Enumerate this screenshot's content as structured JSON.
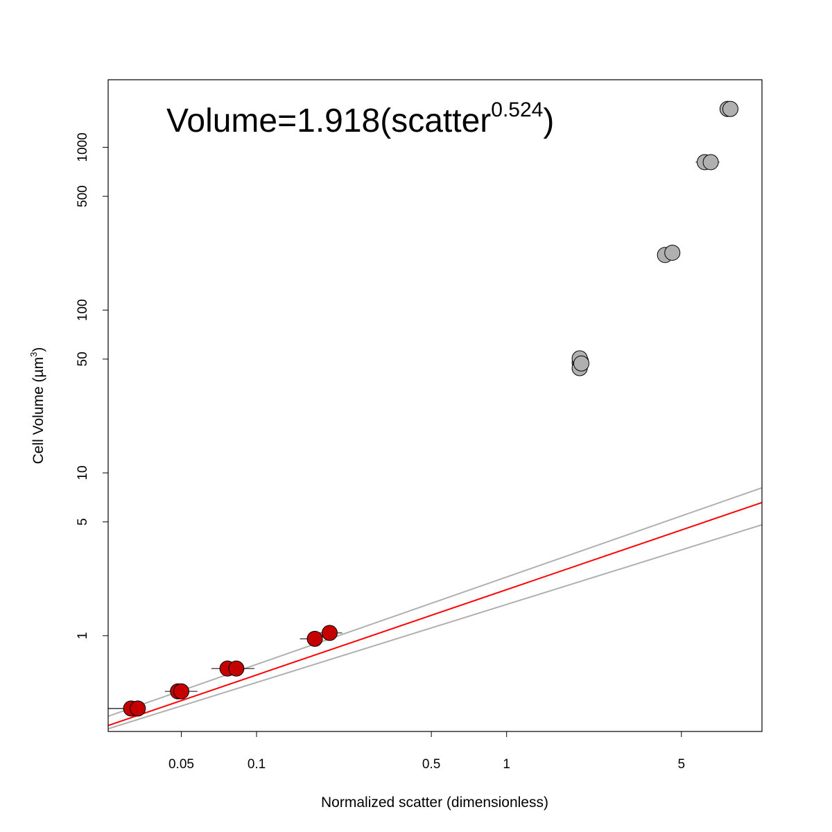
{
  "chart_data": {
    "type": "scatter",
    "x_scale": "log",
    "y_scale": "log",
    "xlabel": "Normalized scatter (dimensionless)",
    "ylabel_main": "Cell Volume (µm",
    "ylabel_sup": "3",
    "ylabel_tail": ")",
    "xlim": [
      0.0255,
      10.5
    ],
    "ylim": [
      0.258,
      2600
    ],
    "x_ticks": [
      0.05,
      0.1,
      0.5,
      1,
      5
    ],
    "x_tick_labels": [
      "0.05",
      "0.1",
      "0.5",
      "1",
      "5"
    ],
    "y_ticks": [
      1,
      5,
      10,
      50,
      100,
      500,
      1000
    ],
    "y_tick_labels": [
      "1",
      "5",
      "10",
      "50",
      "100",
      "500",
      "1000"
    ],
    "annotation": {
      "main": "Volume=1.918(scatter",
      "sup": "0.524",
      "tail": ")"
    },
    "colors": {
      "fitted_points": "#c40000",
      "outlier_points": "#b0b0b0",
      "fit_line": "#ff0000",
      "ci_lines": "#b0b0b0",
      "error_bars": "#000000"
    },
    "series": [
      {
        "role": "fitted",
        "points": [
          {
            "x": 0.0315,
            "y": 0.357,
            "xerr": [
              0.0255,
              0.036
            ]
          },
          {
            "x": 0.0335,
            "y": 0.357,
            "xerr": [
              0.0255,
              0.036
            ]
          },
          {
            "x": 0.0485,
            "y": 0.455
          },
          {
            "x": 0.05,
            "y": 0.455,
            "xerr": [
              0.043,
              0.058
            ]
          },
          {
            "x": 0.0765,
            "y": 0.628
          },
          {
            "x": 0.083,
            "y": 0.628,
            "xerr": [
              0.066,
              0.098
            ]
          },
          {
            "x": 0.171,
            "y": 0.957,
            "xerr": [
              0.149,
              0.181
            ]
          },
          {
            "x": 0.196,
            "y": 1.04,
            "xerr": [
              0.178,
              0.22
            ]
          }
        ]
      },
      {
        "role": "outlier",
        "points": [
          {
            "x": 1.96,
            "y": 47.5,
            "xerr": [
              1.93,
              2.01
            ]
          },
          {
            "x": 1.98,
            "y": 48.5
          },
          {
            "x": 1.96,
            "y": 50.5
          },
          {
            "x": 1.96,
            "y": 44.0
          },
          {
            "x": 1.99,
            "y": 47.0
          },
          {
            "x": 4.3,
            "y": 218,
            "xerr": [
              4.1,
              4.6
            ]
          },
          {
            "x": 4.6,
            "y": 225
          },
          {
            "x": 6.2,
            "y": 810,
            "xerr": [
              5.7,
              7.1
            ]
          },
          {
            "x": 6.55,
            "y": 810
          },
          {
            "x": 7.65,
            "y": 1720,
            "xerr": [
              7.4,
              8.0
            ]
          },
          {
            "x": 7.85,
            "y": 1720
          }
        ]
      }
    ],
    "fit_line": {
      "coef": 1.918,
      "exponent": 0.524,
      "x_range": [
        0.0255,
        10.5
      ]
    },
    "ci_lower": {
      "points": [
        [
          0.0255,
          0.268
        ],
        [
          10.5,
          4.8
        ]
      ]
    },
    "ci_upper": {
      "points": [
        [
          0.0255,
          0.32
        ],
        [
          10.5,
          8.1
        ]
      ]
    }
  }
}
